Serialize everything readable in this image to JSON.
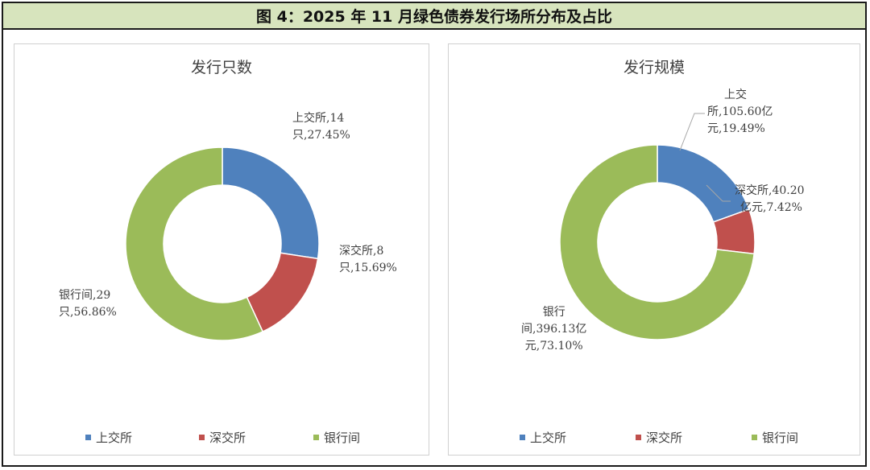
{
  "header": {
    "title": "图 4：2025 年 11 月绿色债券发行场所分布及占比"
  },
  "colors": {
    "上交所": "#4f81bd",
    "深交所": "#c0504d",
    "银行间": "#9bbb59"
  },
  "chart_data": [
    {
      "type": "pie",
      "variant": "donut",
      "title": "发行只数",
      "categories": [
        "上交所",
        "深交所",
        "银行间"
      ],
      "values": [
        14,
        8,
        29
      ],
      "percents": [
        27.45,
        15.69,
        56.86
      ],
      "data_labels": [
        {
          "line1": "上交所,14",
          "line2": "只,27.45%"
        },
        {
          "line1": "深交所,8",
          "line2": "只,15.69%"
        },
        {
          "line1": "银行间,29",
          "line2": "只,56.86%"
        }
      ],
      "legend_position": "bottom"
    },
    {
      "type": "pie",
      "variant": "donut",
      "title": "发行规模",
      "categories": [
        "上交所",
        "深交所",
        "银行间"
      ],
      "values": [
        105.6,
        40.2,
        396.13
      ],
      "percents": [
        19.49,
        7.42,
        73.1
      ],
      "data_labels": [
        {
          "line1": "上交",
          "line2": "所,105.60亿",
          "line3": "元,19.49%"
        },
        {
          "line1": "深交所,40.20",
          "line2": "亿元,7.42%"
        },
        {
          "line1": "银行",
          "line2": "间,396.13亿",
          "line3": "元,73.10%"
        }
      ],
      "legend_position": "bottom"
    }
  ]
}
